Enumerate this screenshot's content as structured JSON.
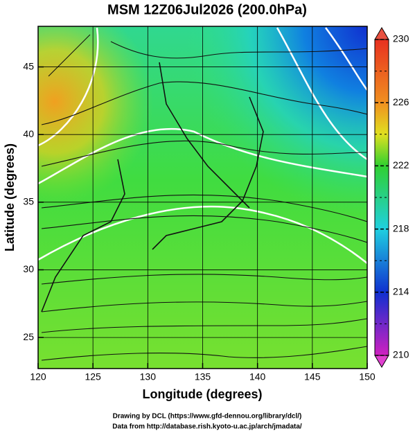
{
  "map": {
    "title": "MSM 12Z06Jul2026 (200.0hPa)",
    "x_axis": {
      "label": "Longitude (degrees)",
      "lim": [
        120,
        150
      ],
      "ticks": [
        120,
        125,
        130,
        135,
        140,
        145,
        150
      ]
    },
    "y_axis": {
      "label": "Latitude  (degrees)",
      "lim": [
        22.7,
        48
      ],
      "ticks": [
        25,
        30,
        35,
        40,
        45
      ]
    },
    "colorbar": {
      "lim": [
        210,
        230
      ],
      "ticks": [
        210,
        214,
        218,
        222,
        226,
        230
      ],
      "minor_ticks": [
        212,
        216,
        220,
        224,
        228
      ]
    },
    "credits": [
      "Drawing by DCL (https://www.gfd-dennou.org/library/dcl/)",
      "Data from http://database.rish.kyoto-u.ac.jp/arch/jmadata/"
    ]
  }
}
